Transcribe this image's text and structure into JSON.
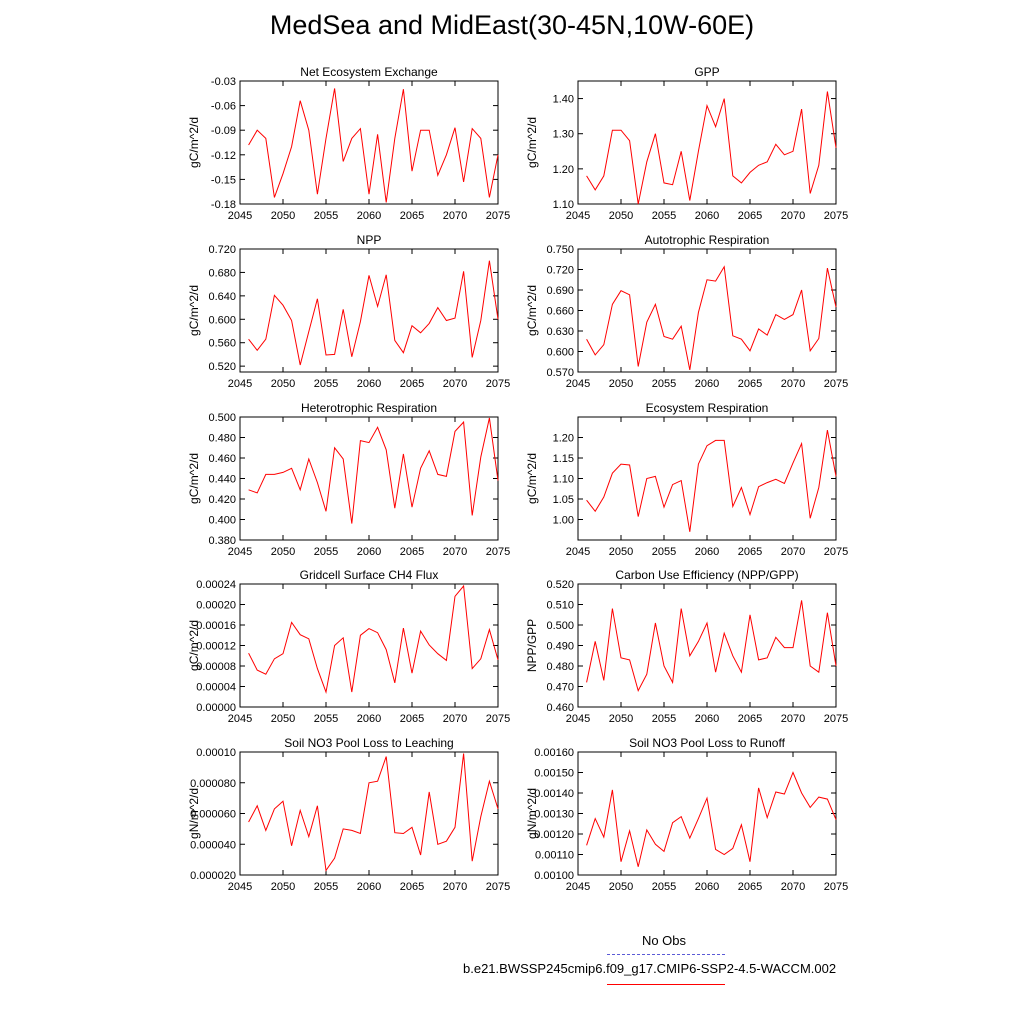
{
  "figure": {
    "title": "MedSea and MidEast(30-45N,10W-60E)",
    "series_color": "#ff0000",
    "obs_color": "#5b5bd6"
  },
  "legend": {
    "obs_label": "No Obs",
    "model_label": "b.e21.BWSSP245cmip6.f09_g17.CMIP6-SSP2-4.5-WACCM.002"
  },
  "chart_data": [
    {
      "type": "line",
      "title": "Net Ecosystem Exchange",
      "ylabel": "gC/m^2/d",
      "xlim": [
        2045,
        2075
      ],
      "ylim": [
        -0.18,
        -0.03
      ],
      "yticks": [
        "-0.03",
        "-0.06",
        "-0.09",
        "-0.12",
        "-0.15",
        "-0.18"
      ],
      "xticks": [
        "2045",
        "2050",
        "2055",
        "2060",
        "2065",
        "2070",
        "2075"
      ],
      "series": [
        {
          "x": [
            2046,
            2047,
            2048,
            2049,
            2050,
            2051,
            2052,
            2053,
            2054,
            2055,
            2056,
            2057,
            2058,
            2059,
            2060,
            2061,
            2062,
            2063,
            2064,
            2065,
            2066,
            2067,
            2068,
            2069,
            2070,
            2071,
            2072,
            2073,
            2074,
            2075
          ],
          "values": [
            -0.108,
            -0.09,
            -0.1,
            -0.172,
            -0.143,
            -0.11,
            -0.054,
            -0.09,
            -0.168,
            -0.1,
            -0.039,
            -0.128,
            -0.1,
            -0.088,
            -0.168,
            -0.095,
            -0.178,
            -0.1,
            -0.04,
            -0.14,
            -0.09,
            -0.09,
            -0.145,
            -0.12,
            -0.087,
            -0.153,
            -0.088,
            -0.1,
            -0.172,
            -0.12
          ]
        }
      ]
    },
    {
      "type": "line",
      "title": "GPP",
      "ylabel": "gC/m^2/d",
      "xlim": [
        2045,
        2075
      ],
      "ylim": [
        1.1,
        1.45
      ],
      "yticks": [
        "1.10",
        "1.20",
        "1.30",
        "1.40"
      ],
      "xticks": [
        "2045",
        "2050",
        "2055",
        "2060",
        "2065",
        "2070",
        "2075"
      ],
      "series": [
        {
          "x": [
            2046,
            2047,
            2048,
            2049,
            2050,
            2051,
            2052,
            2053,
            2054,
            2055,
            2056,
            2057,
            2058,
            2059,
            2060,
            2061,
            2062,
            2063,
            2064,
            2065,
            2066,
            2067,
            2068,
            2069,
            2070,
            2071,
            2072,
            2073,
            2074,
            2075
          ],
          "values": [
            1.18,
            1.14,
            1.18,
            1.31,
            1.31,
            1.28,
            1.1,
            1.22,
            1.3,
            1.16,
            1.155,
            1.25,
            1.11,
            1.25,
            1.38,
            1.32,
            1.4,
            1.18,
            1.16,
            1.19,
            1.21,
            1.22,
            1.27,
            1.24,
            1.25,
            1.37,
            1.13,
            1.21,
            1.42,
            1.26
          ]
        }
      ]
    },
    {
      "type": "line",
      "title": "NPP",
      "ylabel": "gC/m^2/d",
      "xlim": [
        2045,
        2075
      ],
      "ylim": [
        0.51,
        0.72
      ],
      "yticks": [
        "0.720",
        "0.680",
        "0.640",
        "0.600",
        "0.560",
        "0.520"
      ],
      "xticks": [
        "2045",
        "2050",
        "2055",
        "2060",
        "2065",
        "2070",
        "2075"
      ],
      "series": [
        {
          "x": [
            2046,
            2047,
            2048,
            2049,
            2050,
            2051,
            2052,
            2053,
            2054,
            2055,
            2056,
            2057,
            2058,
            2059,
            2060,
            2061,
            2062,
            2063,
            2064,
            2065,
            2066,
            2067,
            2068,
            2069,
            2070,
            2071,
            2072,
            2073,
            2074,
            2075
          ],
          "values": [
            0.566,
            0.547,
            0.566,
            0.641,
            0.624,
            0.598,
            0.522,
            0.579,
            0.635,
            0.539,
            0.54,
            0.617,
            0.536,
            0.596,
            0.675,
            0.622,
            0.676,
            0.564,
            0.543,
            0.589,
            0.577,
            0.593,
            0.62,
            0.598,
            0.602,
            0.682,
            0.535,
            0.598,
            0.7,
            0.6
          ]
        }
      ]
    },
    {
      "type": "line",
      "title": "Autotrophic Respiration",
      "ylabel": "gC/m^2/d",
      "xlim": [
        2045,
        2075
      ],
      "ylim": [
        0.57,
        0.75
      ],
      "yticks": [
        "0.750",
        "0.720",
        "0.690",
        "0.660",
        "0.630",
        "0.600",
        "0.570"
      ],
      "xticks": [
        "2045",
        "2050",
        "2055",
        "2060",
        "2065",
        "2070",
        "2075"
      ],
      "series": [
        {
          "x": [
            2046,
            2047,
            2048,
            2049,
            2050,
            2051,
            2052,
            2053,
            2054,
            2055,
            2056,
            2057,
            2058,
            2059,
            2060,
            2061,
            2062,
            2063,
            2064,
            2065,
            2066,
            2067,
            2068,
            2069,
            2070,
            2071,
            2072,
            2073,
            2074,
            2075
          ],
          "values": [
            0.618,
            0.595,
            0.61,
            0.669,
            0.689,
            0.683,
            0.578,
            0.643,
            0.669,
            0.622,
            0.618,
            0.637,
            0.573,
            0.657,
            0.705,
            0.703,
            0.724,
            0.623,
            0.618,
            0.601,
            0.633,
            0.624,
            0.654,
            0.647,
            0.654,
            0.69,
            0.601,
            0.619,
            0.722,
            0.665
          ]
        }
      ]
    },
    {
      "type": "line",
      "title": "Heterotrophic Respiration",
      "ylabel": "gC/m^2/d",
      "xlim": [
        2045,
        2075
      ],
      "ylim": [
        0.38,
        0.5
      ],
      "yticks": [
        "0.500",
        "0.480",
        "0.460",
        "0.440",
        "0.420",
        "0.400",
        "0.380"
      ],
      "xticks": [
        "2045",
        "2050",
        "2055",
        "2060",
        "2065",
        "2070",
        "2075"
      ],
      "series": [
        {
          "x": [
            2046,
            2047,
            2048,
            2049,
            2050,
            2051,
            2052,
            2053,
            2054,
            2055,
            2056,
            2057,
            2058,
            2059,
            2060,
            2061,
            2062,
            2063,
            2064,
            2065,
            2066,
            2067,
            2068,
            2069,
            2070,
            2071,
            2072,
            2073,
            2074,
            2075
          ],
          "values": [
            0.429,
            0.426,
            0.444,
            0.444,
            0.446,
            0.45,
            0.429,
            0.459,
            0.436,
            0.408,
            0.47,
            0.459,
            0.396,
            0.477,
            0.475,
            0.49,
            0.468,
            0.411,
            0.464,
            0.412,
            0.45,
            0.467,
            0.444,
            0.442,
            0.486,
            0.495,
            0.404,
            0.461,
            0.499,
            0.438
          ]
        }
      ]
    },
    {
      "type": "line",
      "title": "Ecosystem Respiration",
      "ylabel": "gC/m^2/d",
      "xlim": [
        2045,
        2075
      ],
      "ylim": [
        0.95,
        1.25
      ],
      "yticks": [
        "1.20",
        "1.15",
        "1.10",
        "1.05",
        "1.00"
      ],
      "xticks": [
        "2045",
        "2050",
        "2055",
        "2060",
        "2065",
        "2070",
        "2075"
      ],
      "series": [
        {
          "x": [
            2046,
            2047,
            2048,
            2049,
            2050,
            2051,
            2052,
            2053,
            2054,
            2055,
            2056,
            2057,
            2058,
            2059,
            2060,
            2061,
            2062,
            2063,
            2064,
            2065,
            2066,
            2067,
            2068,
            2069,
            2070,
            2071,
            2072,
            2073,
            2074,
            2075
          ],
          "values": [
            1.047,
            1.02,
            1.055,
            1.113,
            1.135,
            1.133,
            1.007,
            1.1,
            1.105,
            1.03,
            1.085,
            1.095,
            0.97,
            1.135,
            1.18,
            1.193,
            1.193,
            1.032,
            1.078,
            1.012,
            1.08,
            1.09,
            1.098,
            1.088,
            1.138,
            1.185,
            1.003,
            1.078,
            1.218,
            1.105
          ]
        }
      ]
    },
    {
      "type": "line",
      "title": "Gridcell Surface CH4 Flux",
      "ylabel": "gC/m^2/d",
      "xlim": [
        2045,
        2075
      ],
      "ylim": [
        0.0,
        0.00024
      ],
      "yticks": [
        "0.00024",
        "0.00020",
        "0.00016",
        "0.00012",
        "0.00008",
        "0.00004",
        "0.00000"
      ],
      "xticks": [
        "2045",
        "2050",
        "2055",
        "2060",
        "2065",
        "2070",
        "2075"
      ],
      "series": [
        {
          "x": [
            2046,
            2047,
            2048,
            2049,
            2050,
            2051,
            2052,
            2053,
            2054,
            2055,
            2056,
            2057,
            2058,
            2059,
            2060,
            2061,
            2062,
            2063,
            2064,
            2065,
            2066,
            2067,
            2068,
            2069,
            2070,
            2071,
            2072,
            2073,
            2074,
            2075
          ],
          "values": [
            0.000105,
            7.2e-05,
            6.4e-05,
            9.4e-05,
            0.000104,
            0.000165,
            0.000141,
            0.000133,
            7.5e-05,
            2.9e-05,
            0.00012,
            0.000135,
            2.9e-05,
            0.00014,
            0.000153,
            0.000145,
            0.000112,
            4.7e-05,
            0.000154,
            6.6e-05,
            0.000148,
            0.000121,
            0.000104,
            9.1e-05,
            0.000216,
            0.000236,
            7.5e-05,
            9.4e-05,
            0.000151,
            9.2e-05
          ]
        }
      ]
    },
    {
      "type": "line",
      "title": "Carbon Use Efficiency (NPP/GPP)",
      "ylabel": "NPP/GPP",
      "xlim": [
        2045,
        2075
      ],
      "ylim": [
        0.46,
        0.52
      ],
      "yticks": [
        "0.520",
        "0.510",
        "0.500",
        "0.490",
        "0.480",
        "0.470",
        "0.460"
      ],
      "xticks": [
        "2045",
        "2050",
        "2055",
        "2060",
        "2065",
        "2070",
        "2075"
      ],
      "series": [
        {
          "x": [
            2046,
            2047,
            2048,
            2049,
            2050,
            2051,
            2052,
            2053,
            2054,
            2055,
            2056,
            2057,
            2058,
            2059,
            2060,
            2061,
            2062,
            2063,
            2064,
            2065,
            2066,
            2067,
            2068,
            2069,
            2070,
            2071,
            2072,
            2073,
            2074,
            2075
          ],
          "values": [
            0.472,
            0.492,
            0.473,
            0.508,
            0.484,
            0.483,
            0.468,
            0.476,
            0.501,
            0.48,
            0.472,
            0.508,
            0.485,
            0.492,
            0.501,
            0.477,
            0.496,
            0.485,
            0.477,
            0.505,
            0.483,
            0.484,
            0.494,
            0.489,
            0.489,
            0.512,
            0.48,
            0.477,
            0.506,
            0.48
          ]
        }
      ]
    },
    {
      "type": "line",
      "title": "Soil NO3 Pool Loss to Leaching",
      "ylabel": "gN/m^2/d",
      "xlim": [
        2045,
        2075
      ],
      "ylim": [
        2e-05,
        0.0001
      ],
      "yticks": [
        "0.00010",
        "0.000080",
        "0.000060",
        "0.000040",
        "0.000020"
      ],
      "xticks": [
        "2045",
        "2050",
        "2055",
        "2060",
        "2065",
        "2070",
        "2075"
      ],
      "series": [
        {
          "x": [
            2046,
            2047,
            2048,
            2049,
            2050,
            2051,
            2052,
            2053,
            2054,
            2055,
            2056,
            2057,
            2058,
            2059,
            2060,
            2061,
            2062,
            2063,
            2064,
            2065,
            2066,
            2067,
            2068,
            2069,
            2070,
            2071,
            2072,
            2073,
            2074,
            2075
          ],
          "values": [
            5.45e-05,
            6.5e-05,
            4.9e-05,
            6.3e-05,
            6.8e-05,
            3.9e-05,
            6.2e-05,
            4.5e-05,
            6.5e-05,
            2.3e-05,
            3.1e-05,
            5e-05,
            4.9e-05,
            4.7e-05,
            8e-05,
            8.1e-05,
            9.7e-05,
            4.75e-05,
            4.7e-05,
            5.1e-05,
            3.3e-05,
            7.4e-05,
            4e-05,
            4.2e-05,
            5.1e-05,
            9.9e-05,
            2.9e-05,
            5.8e-05,
            8.1e-05,
            6.3e-05
          ]
        }
      ]
    },
    {
      "type": "line",
      "title": "Soil NO3 Pool Loss to Runoff",
      "ylabel": "gN/m^2/d",
      "xlim": [
        2045,
        2075
      ],
      "ylim": [
        0.001,
        0.0016
      ],
      "yticks": [
        "0.00160",
        "0.00150",
        "0.00140",
        "0.00130",
        "0.00120",
        "0.00110",
        "0.00100"
      ],
      "xticks": [
        "2045",
        "2050",
        "2055",
        "2060",
        "2065",
        "2070",
        "2075"
      ],
      "series": [
        {
          "x": [
            2046,
            2047,
            2048,
            2049,
            2050,
            2051,
            2052,
            2053,
            2054,
            2055,
            2056,
            2057,
            2058,
            2059,
            2060,
            2061,
            2062,
            2063,
            2064,
            2065,
            2066,
            2067,
            2068,
            2069,
            2070,
            2071,
            2072,
            2073,
            2074,
            2075
          ],
          "values": [
            0.001145,
            0.001275,
            0.001185,
            0.001415,
            0.001065,
            0.001215,
            0.00104,
            0.00122,
            0.00115,
            0.001115,
            0.001255,
            0.001285,
            0.00118,
            0.001275,
            0.001375,
            0.001125,
            0.0011,
            0.00113,
            0.001245,
            0.001065,
            0.001425,
            0.00128,
            0.001405,
            0.001395,
            0.0015,
            0.0014,
            0.00133,
            0.00138,
            0.00137,
            0.00127
          ]
        }
      ]
    }
  ]
}
